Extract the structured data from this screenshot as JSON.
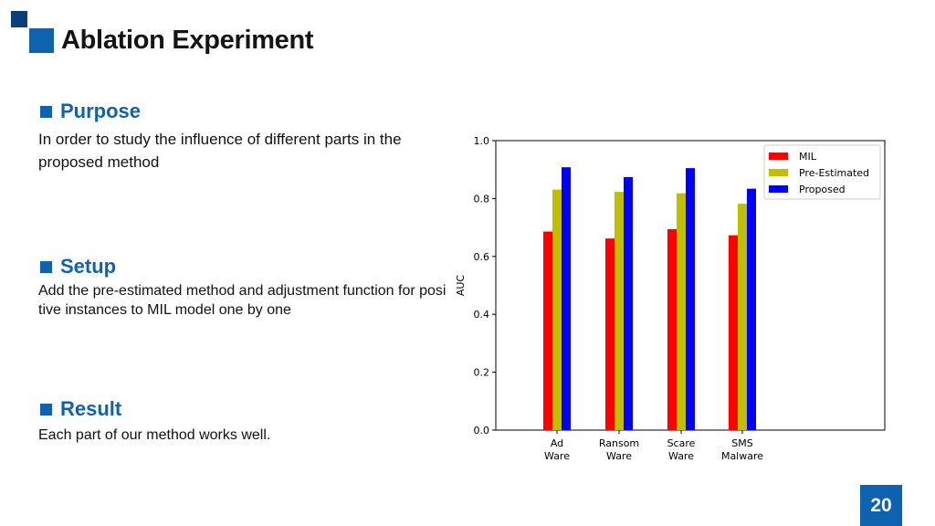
{
  "slide": {
    "title": "Ablation Experiment",
    "page_number": "20"
  },
  "sections": {
    "purpose": {
      "heading": "Purpose",
      "text": "In order to study the influence of different parts in the proposed method"
    },
    "setup": {
      "heading": "Setup",
      "text": "Add the pre-estimated method and adjustment function for positive instances to MIL model one by one"
    },
    "result": {
      "heading": "Result",
      "text": "Each part of our method works well."
    }
  },
  "chart_data": {
    "type": "bar",
    "categories": [
      "Ad Ware",
      "Ransom Ware",
      "Scare Ware",
      "SMS Malware"
    ],
    "category_lines": [
      [
        "Ad",
        "Ware"
      ],
      [
        "Ransom",
        "Ware"
      ],
      [
        "Scare",
        "Ware"
      ],
      [
        "SMS",
        "Malware"
      ]
    ],
    "series": [
      {
        "name": "MIL",
        "color": "#ff0000",
        "values": [
          0.686,
          0.662,
          0.694,
          0.673
        ]
      },
      {
        "name": "Pre-Estimated",
        "color": "#bfbf00",
        "values": [
          0.831,
          0.823,
          0.818,
          0.782
        ]
      },
      {
        "name": "Proposed",
        "color": "#0000ff",
        "values": [
          0.908,
          0.874,
          0.905,
          0.834
        ]
      }
    ],
    "xlabel": "",
    "ylabel": "AUC",
    "ylim": [
      0.0,
      1.0
    ],
    "yticks": [
      "0.0",
      "0.2",
      "0.4",
      "0.6",
      "0.8",
      "1.0"
    ],
    "grid": false,
    "legend_position": "top-right"
  }
}
